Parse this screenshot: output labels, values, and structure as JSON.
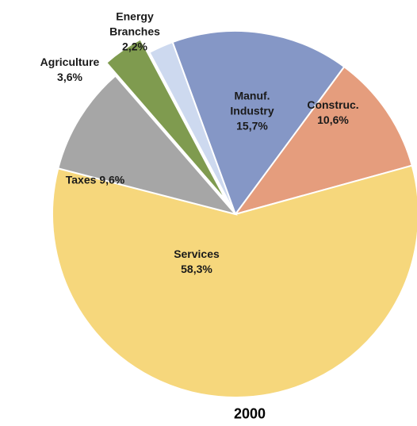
{
  "chart_data": {
    "type": "pie",
    "title": "2000",
    "categories": [
      "Energy Branches",
      "Manuf. Industry",
      "Construc.",
      "Services",
      "Taxes",
      "Agriculture"
    ],
    "values": [
      2.2,
      15.7,
      10.6,
      58.3,
      9.6,
      3.6
    ],
    "value_labels": [
      "2,2%",
      "15,7%",
      "10,6%",
      "58,3%",
      "9,6%",
      "3,6%"
    ],
    "colors": [
      "#cdd9ef",
      "#8597c6",
      "#e59d7d",
      "#f6d77c",
      "#a6a6a6",
      "#7f9b4f"
    ]
  }
}
